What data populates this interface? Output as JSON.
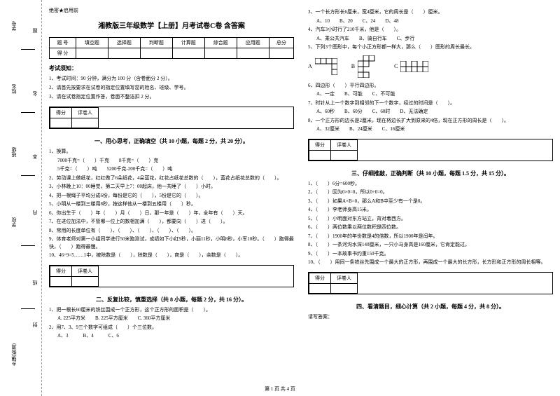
{
  "margin": {
    "labels": [
      "学号",
      "姓名",
      "班级",
      "学校",
      "乡镇(街道)"
    ],
    "marks": [
      "题",
      "名",
      "本",
      "内",
      "线",
      "封"
    ]
  },
  "secret": "绝密★启用前",
  "title": "湘教版三年级数学【上册】月考试卷C卷 含答案",
  "score_table": {
    "headers": [
      "题 号",
      "填空题",
      "选择题",
      "判断题",
      "计算题",
      "综合题",
      "应用题",
      "总分"
    ],
    "row_label": "得 分"
  },
  "notice": {
    "title": "考试须知：",
    "items": [
      "1、考试时间：90 分钟，满分为 100 分（含卷面分 2 分）。",
      "2、请首先按要求在试卷的指定位置填写您的姓名、班级、学号。",
      "3、请在试卷指定位置作答，卷面不整洁扣 2 分。"
    ]
  },
  "scorebox": {
    "c1": "得分",
    "c2": "评卷人"
  },
  "sec1": {
    "title": "一、用心思考，正确填空（共 10 小题，每题 2 分，共 20 分）。",
    "q1": "1、换算。",
    "q1a": "7000千克=（　　）千克",
    "q1b": "8千克=（　　）克",
    "q1c": "5千克=（　　）吨",
    "q1d": "5200千克-200千克=（　　）吨",
    "q2": "2、劳动课上做纸花，红红做了6朵纸花，4朵蓝花，红花占纸花总数的（　　），蓝花占纸花总数的（　　）。",
    "q3": "3、小林晚上10：00睡觉，第二天早上7：00起床，他一共睡了（　　）小时。",
    "q4": "4、把一根绳子平均分成6份，每份是它的（　　），5份是它的（　　）。",
    "q5": "5、小明从一楼到三楼用8秒，按这样他从一楼到五楼用（　　）秒。",
    "q6": "6、你出生于（　　）年（　　）月（　　）日，那一年是（　　）年，全年有（　　）天。",
    "q7": "7、在进位加法中，不管哪一位上的数相加满（　　），都要向（　　）进（　　）。",
    "q8": "8、常用的长度单位有（　　）、（　　）、（　　）、（　　）、（　　）。",
    "q9": "9、体育老师对第一小组同学进行50米跑测试，成绩如下小红9秒，小丽11秒，小明8秒，小军10秒。（　　）跑得最快，（　　）跑得最慢。",
    "q10": "10、46÷9=5……1中，被除数是（　　），除数是（　　），商是（　　），余数是（　　）。"
  },
  "sec2": {
    "title": "二、反复比较，慎重选择（共 8 小题，每题 2 分，共 16 分）。",
    "q1": "1、把一根长60厘米的铁丝围成一个正方形，这个正方形的面积是（　　）。",
    "q1opts": "A. 225平方米　　B. 225平方厘米　　C. 360平方厘米",
    "q2": "2、用7、3、9三个数字可组成（　　）个三位数。",
    "q2opts": "A、3　　　B、4　　　C、6",
    "q3": "3、一个长方形长6厘米，宽4厘米，它的周长是（　　）厘米。",
    "q3opts": "A、10　　B、20　　C、24　　D、48",
    "q4": "4、汽车3小时行了210千米，他是（　　）。",
    "q4opts": "A、乘公共汽车　　B、骑自行车　　C、步行",
    "q5": "5、下列3个图形中，每个小正方形都一样大，那么（　　）图形的周长最长。",
    "q5opts": {
      "a": "A",
      "b": "B",
      "c": "C"
    },
    "q6": "6、四边形（　　）平行四边形。",
    "q6opts": "A、一定　　B、可能　　C、不可能",
    "q7": "7、时针从上一个数字到相邻的下一个数字，经过的时间是（　　）。",
    "q7opts": "A、60秒　　B、60分　　C、60时　　D、无法确定",
    "q8": "8、一个正方形的边长是2厘米，现在将边长扩大到原来的4倍，现在正方形的周长是（　　）。",
    "q8opts": "A、32厘米　　B、24厘米　　C、16厘米"
  },
  "sec3": {
    "title": "三、仔细推敲，正确判断（共 10 小题，每题 1.5 分，共 15 分）。",
    "items": [
      "1、（　　）6分=600秒。",
      "2、（　　）因为0×0=0，所以0÷0=0。",
      "3、（　　）如果A×B=0，那么A和B中至少有一个是0。",
      "4、（　　）李老师身高15米。",
      "5、（　　）小明面对东方站立，背对着西方。",
      "6、（　　）两位数乘以两位数积是四位数。",
      "7、（　　）1900年的年份数是4的倍数，所以1900年是闰年。",
      "8、（　　）一条河沟水深140厘米，一只小马身高是160厘米，它肯定能过。",
      "9、（　　）一本故事书约重150千克。",
      "10、（　　）用同一条铁丝先围成一个最大的正方形，再围成一个最大的长方形，长方形和正方形的周长相等。"
    ]
  },
  "sec4": {
    "title": "四、看清题目，细心计算（共 2 小题，每题 4 分，共 8 分）。",
    "hint": "请写答案："
  },
  "shapes": {
    "A": {
      "grid": [
        [
          1,
          1,
          1,
          1
        ],
        [
          0,
          0,
          0,
          1
        ],
        [
          0,
          0,
          0,
          1
        ]
      ],
      "cell": 8
    },
    "B": {
      "grid": [
        [
          0,
          1,
          1,
          0
        ],
        [
          1,
          1,
          0,
          0
        ],
        [
          1,
          0,
          0,
          0
        ],
        [
          1,
          1,
          0,
          0
        ]
      ],
      "cell": 8
    },
    "C": {
      "grid": [
        [
          1,
          0,
          1,
          0,
          1
        ],
        [
          1,
          1,
          1,
          1,
          1
        ]
      ],
      "cell": 8
    }
  },
  "footer": "第 1 页 共 4 页"
}
